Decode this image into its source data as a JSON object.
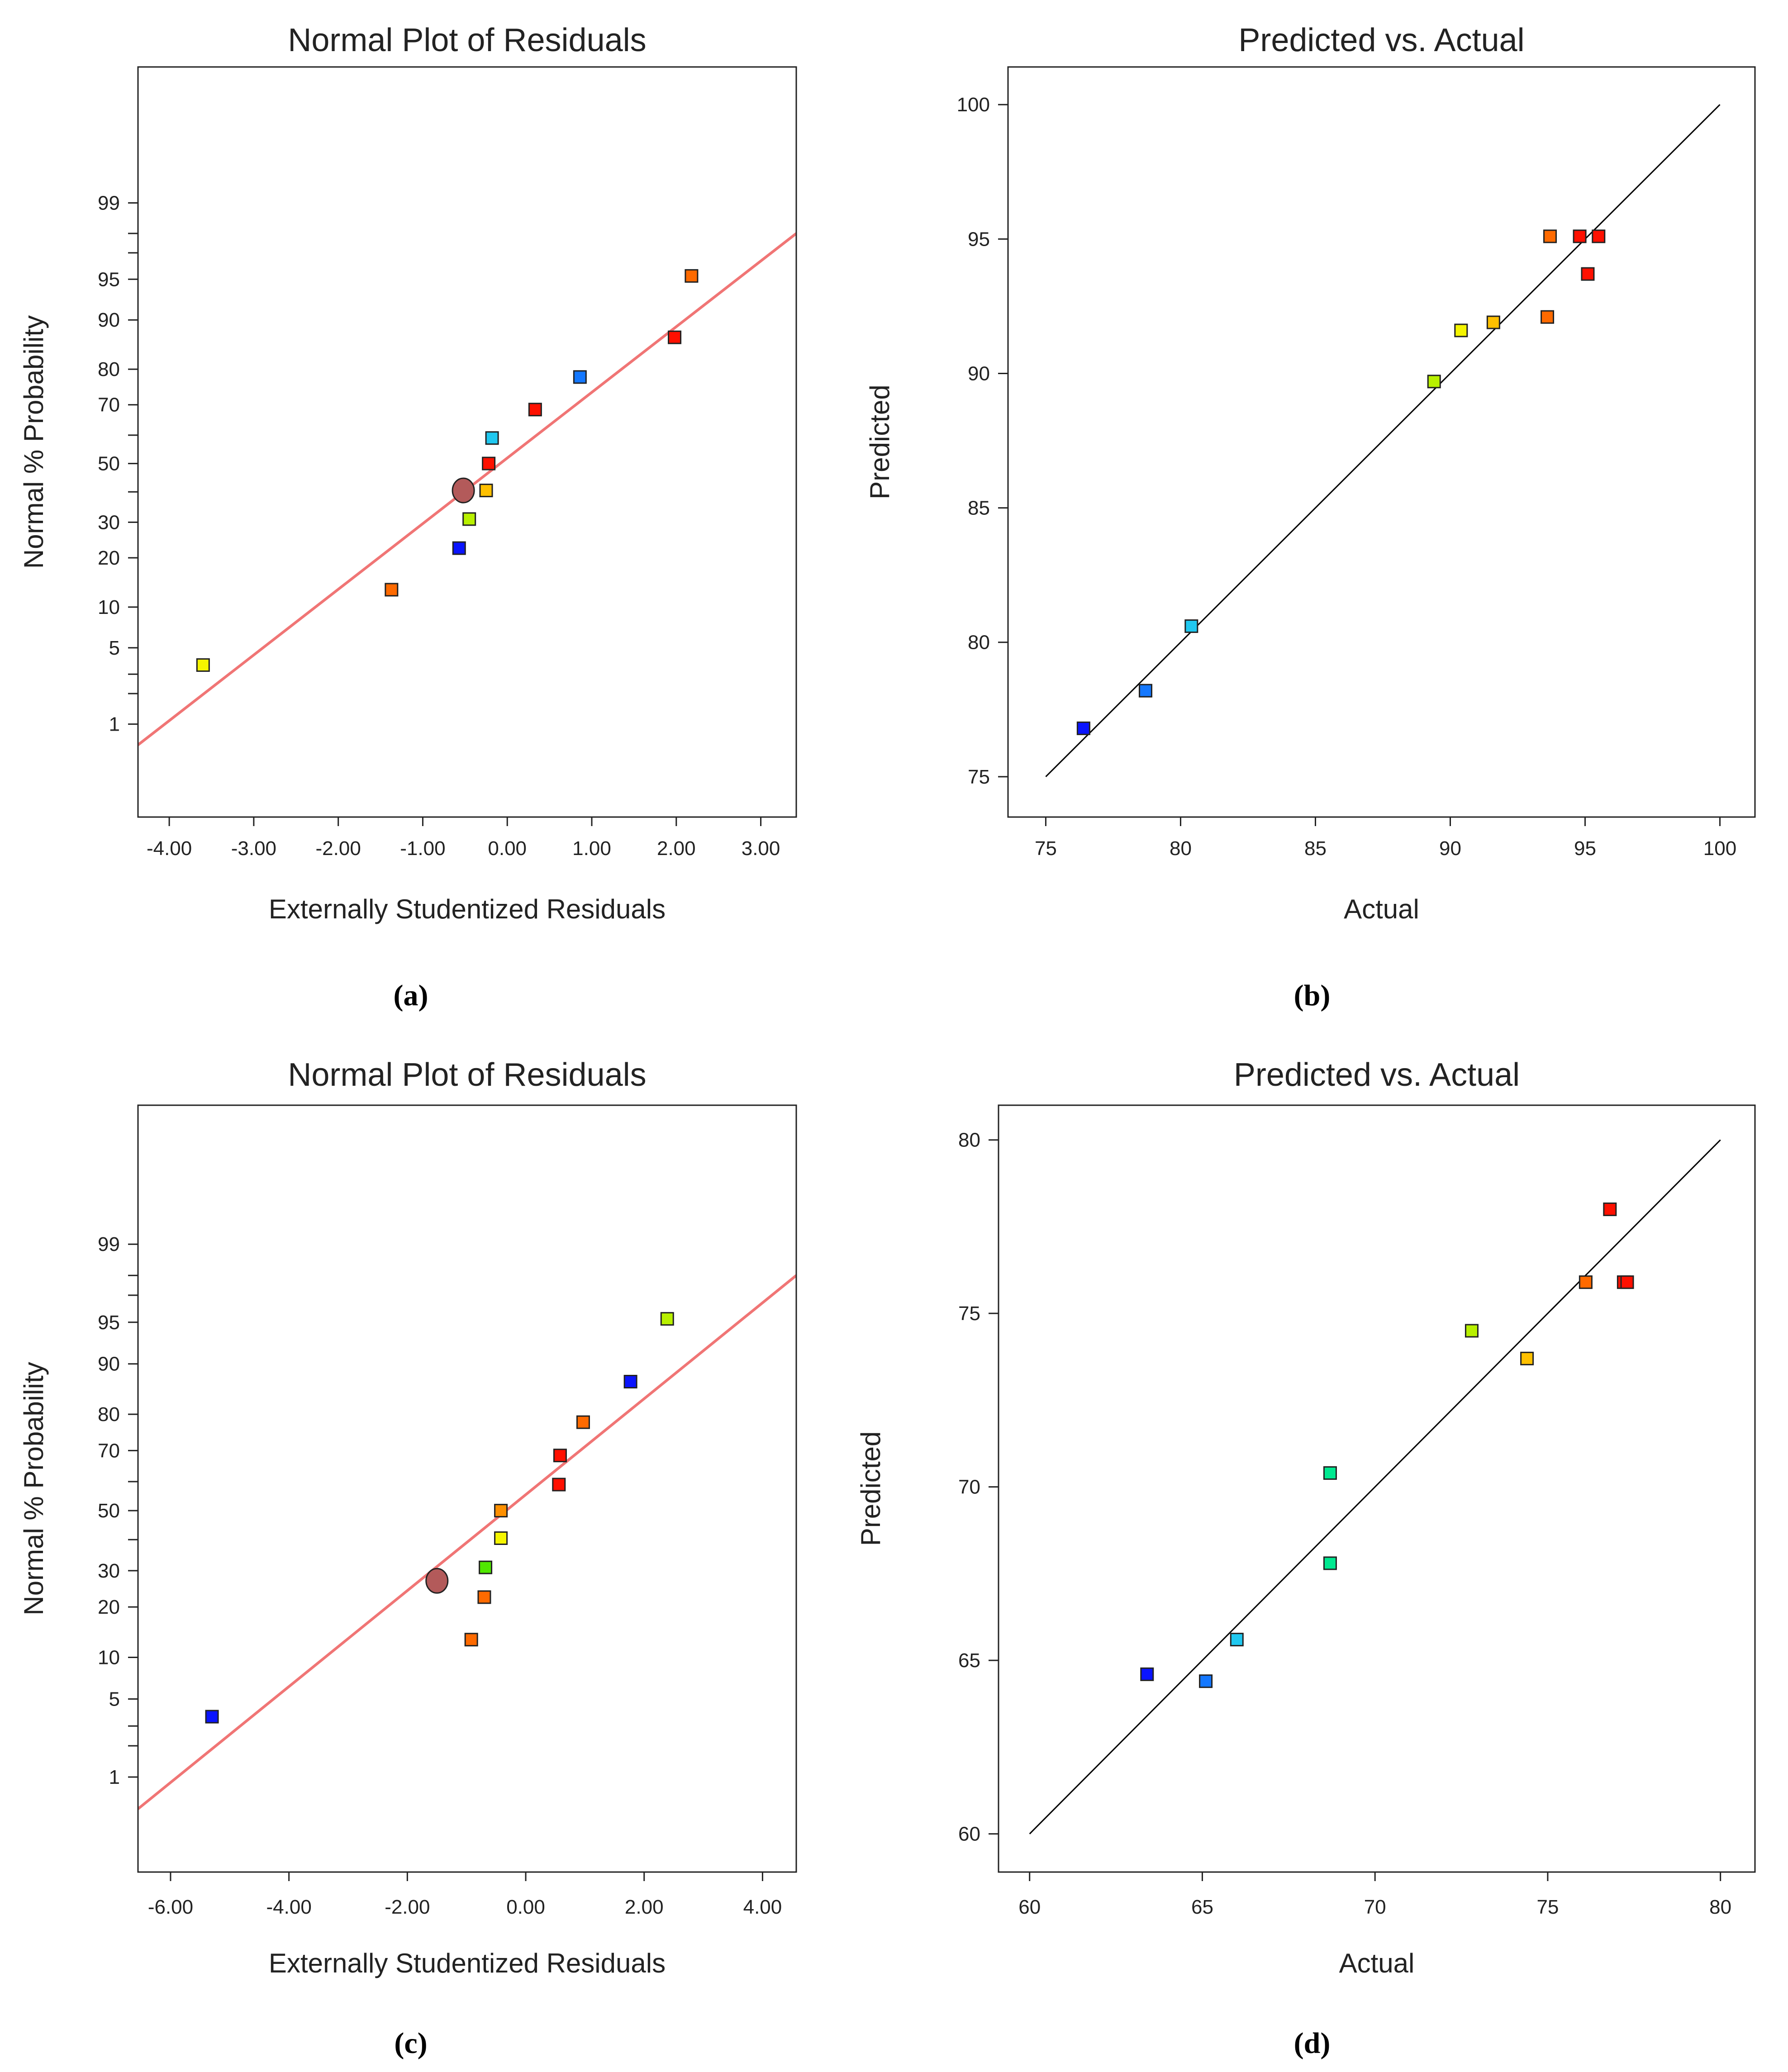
{
  "chart_data": [
    {
      "type": "scatter",
      "panel": "(a)",
      "title": "Normal Plot of Residuals",
      "xlabel": "Externally Studentized Residuals",
      "ylabel": "Normal % Probability",
      "x_scale": "linear",
      "y_scale": "normal-probability",
      "xlim": [
        -4.37,
        3.42
      ],
      "ylim": [
        0.08,
        99.98
      ],
      "x_ticks": [
        -4.0,
        -3.0,
        -2.0,
        -1.0,
        0.0,
        1.0,
        2.0,
        3.0
      ],
      "x_tick_labels": [
        "-4.00",
        "-3.00",
        "-2.00",
        "-1.00",
        "0.00",
        "1.00",
        "2.00",
        "3.00"
      ],
      "y_ticks": [
        1,
        5,
        10,
        20,
        30,
        50,
        70,
        80,
        90,
        95,
        99
      ],
      "y_tick_labels": [
        "1",
        "5",
        "10",
        "20",
        "30",
        "50",
        "70",
        "80",
        "90",
        "95",
        "99"
      ],
      "y_minor_ticks": [
        2,
        3,
        40,
        60,
        97,
        98
      ],
      "reference_line": {
        "x": [
          -4.37,
          3.42
        ],
        "y": [
          0.6,
          98.0
        ],
        "color": "#f07575"
      },
      "highlight_point": {
        "x": -0.52,
        "y": 40.5,
        "color": "#b35a5a"
      },
      "points": [
        {
          "x": -3.6,
          "y": 3.6,
          "color": "#f5f500"
        },
        {
          "x": -1.37,
          "y": 13.0,
          "color": "#ff6a00"
        },
        {
          "x": -0.57,
          "y": 22.5,
          "color": "#0a14ff"
        },
        {
          "x": -0.45,
          "y": 31.0,
          "color": "#b8f000"
        },
        {
          "x": -0.25,
          "y": 40.5,
          "color": "#ffc000"
        },
        {
          "x": -0.22,
          "y": 50.0,
          "color": "#ff1000"
        },
        {
          "x": -0.18,
          "y": 59.0,
          "color": "#20c8f0"
        },
        {
          "x": 0.33,
          "y": 68.5,
          "color": "#ff1000"
        },
        {
          "x": 0.86,
          "y": 78.0,
          "color": "#1478ff"
        },
        {
          "x": 1.98,
          "y": 87.0,
          "color": "#ff1000"
        },
        {
          "x": 2.18,
          "y": 95.3,
          "color": "#ff6a00"
        }
      ],
      "grid": false,
      "caption": "(a)"
    },
    {
      "type": "scatter",
      "panel": "(b)",
      "title": "Predicted vs. Actual",
      "xlabel": "Actual",
      "ylabel": "Predicted",
      "xlim": [
        73.6,
        101.3
      ],
      "ylim": [
        73.5,
        101.4
      ],
      "x_ticks": [
        75,
        80,
        85,
        90,
        95,
        100
      ],
      "y_ticks": [
        75,
        80,
        85,
        90,
        95,
        100
      ],
      "reference_line": {
        "x": [
          75,
          100
        ],
        "y": [
          75,
          100
        ],
        "color": "#000000"
      },
      "points": [
        {
          "x": 76.4,
          "y": 76.8,
          "color": "#0a14ff"
        },
        {
          "x": 78.7,
          "y": 78.2,
          "color": "#1478ff"
        },
        {
          "x": 80.4,
          "y": 80.6,
          "color": "#20c8f0"
        },
        {
          "x": 89.4,
          "y": 89.7,
          "color": "#b8f000"
        },
        {
          "x": 90.4,
          "y": 91.6,
          "color": "#f5f500"
        },
        {
          "x": 91.6,
          "y": 91.9,
          "color": "#ffc000"
        },
        {
          "x": 93.6,
          "y": 92.1,
          "color": "#ff6a00"
        },
        {
          "x": 93.7,
          "y": 95.1,
          "color": "#ff6a00"
        },
        {
          "x": 94.8,
          "y": 95.1,
          "color": "#ff1000"
        },
        {
          "x": 95.1,
          "y": 93.7,
          "color": "#ff1000"
        },
        {
          "x": 95.5,
          "y": 95.1,
          "color": "#ff1000"
        }
      ],
      "grid": false,
      "caption": "(b)"
    },
    {
      "type": "scatter",
      "panel": "(c)",
      "title": "Normal Plot of Residuals",
      "xlabel": "Externally Studentized Residuals",
      "ylabel": "Normal % Probability",
      "x_scale": "linear",
      "y_scale": "normal-probability",
      "xlim": [
        -6.55,
        4.57
      ],
      "ylim": [
        0.08,
        99.98
      ],
      "x_ticks": [
        -6.0,
        -4.0,
        -2.0,
        0.0,
        2.0,
        4.0
      ],
      "x_tick_labels": [
        "-6.00",
        "-4.00",
        "-2.00",
        "0.00",
        "2.00",
        "4.00"
      ],
      "y_ticks": [
        1,
        5,
        10,
        20,
        30,
        50,
        70,
        80,
        90,
        95,
        99
      ],
      "y_tick_labels": [
        "1",
        "5",
        "10",
        "20",
        "30",
        "50",
        "70",
        "80",
        "90",
        "95",
        "99"
      ],
      "y_minor_ticks": [
        2,
        3,
        40,
        60,
        97,
        98
      ],
      "reference_line": {
        "x": [
          -6.55,
          4.57
        ],
        "y": [
          0.46,
          98.0
        ],
        "color": "#f07575"
      },
      "highlight_point": {
        "x": -1.5,
        "y": 27.0,
        "color": "#b35a5a"
      },
      "points": [
        {
          "x": -5.3,
          "y": 3.6,
          "color": "#0a14ff"
        },
        {
          "x": -0.92,
          "y": 13.0,
          "color": "#ff6a00"
        },
        {
          "x": -0.7,
          "y": 22.5,
          "color": "#ff6a00"
        },
        {
          "x": -0.68,
          "y": 31.0,
          "color": "#50e800"
        },
        {
          "x": -0.42,
          "y": 40.5,
          "color": "#f5f500"
        },
        {
          "x": -0.42,
          "y": 50.0,
          "color": "#ff9000"
        },
        {
          "x": 0.56,
          "y": 59.0,
          "color": "#ff1000"
        },
        {
          "x": 0.58,
          "y": 68.5,
          "color": "#ff1000"
        },
        {
          "x": 0.97,
          "y": 78.0,
          "color": "#ff6a00"
        },
        {
          "x": 1.77,
          "y": 87.0,
          "color": "#0a14ff"
        },
        {
          "x": 2.39,
          "y": 95.3,
          "color": "#b8f000"
        }
      ],
      "grid": false,
      "caption": "(c)"
    },
    {
      "type": "scatter",
      "panel": "(d)",
      "title": "Predicted vs. Actual",
      "xlabel": "Actual",
      "ylabel": "Predicted",
      "xlim": [
        59.1,
        81.0
      ],
      "ylim": [
        58.9,
        81.0
      ],
      "x_ticks": [
        60,
        65,
        70,
        75,
        80
      ],
      "y_ticks": [
        60,
        65,
        70,
        75,
        80
      ],
      "reference_line": {
        "x": [
          60,
          80
        ],
        "y": [
          60,
          80
        ],
        "color": "#000000"
      },
      "points": [
        {
          "x": 63.4,
          "y": 64.6,
          "color": "#0a14ff"
        },
        {
          "x": 65.1,
          "y": 64.4,
          "color": "#1478ff"
        },
        {
          "x": 66.0,
          "y": 65.6,
          "color": "#20c8f0"
        },
        {
          "x": 68.7,
          "y": 67.8,
          "color": "#00e890"
        },
        {
          "x": 68.7,
          "y": 70.4,
          "color": "#00e890"
        },
        {
          "x": 72.8,
          "y": 74.5,
          "color": "#b8f000"
        },
        {
          "x": 74.4,
          "y": 73.7,
          "color": "#ffc000"
        },
        {
          "x": 76.1,
          "y": 75.9,
          "color": "#ff6a00"
        },
        {
          "x": 76.8,
          "y": 78.0,
          "color": "#ff1000"
        },
        {
          "x": 77.2,
          "y": 75.9,
          "color": "#ff1000"
        },
        {
          "x": 77.3,
          "y": 75.9,
          "color": "#ff1000"
        }
      ],
      "grid": false,
      "caption": "(d)"
    }
  ]
}
